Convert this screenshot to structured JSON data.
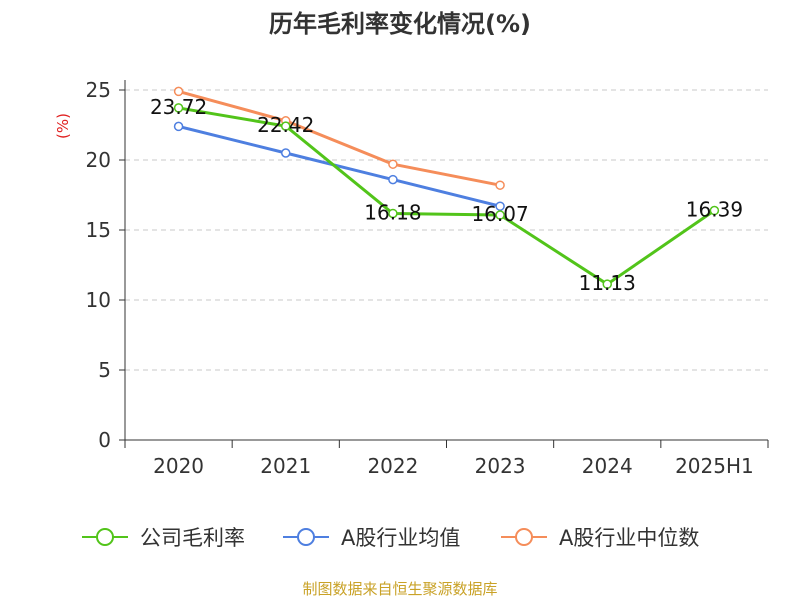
{
  "chart_data": {
    "type": "line",
    "title": "历年毛利率变化情况(%)",
    "ylabel": "(%)",
    "xlabel": "",
    "categories": [
      "2020",
      "2021",
      "2022",
      "2023",
      "2024",
      "2025H1"
    ],
    "ylim": [
      0,
      25
    ],
    "yticks": [
      0,
      5,
      10,
      15,
      20,
      25
    ],
    "grid": true,
    "legend_position": "bottom",
    "series": [
      {
        "name": "公司毛利率",
        "color": "#52c41a",
        "values": [
          23.72,
          22.42,
          16.18,
          16.07,
          11.13,
          16.39
        ],
        "labels": [
          "23.72",
          "22.42",
          "16.18",
          "16.07",
          "11.13",
          "16.39"
        ]
      },
      {
        "name": "A股行业均值",
        "color": "#4e7fe0",
        "values": [
          22.4,
          20.5,
          18.6,
          16.7,
          null,
          null
        ]
      },
      {
        "name": "A股行业中位数",
        "color": "#f58d5a",
        "values": [
          24.9,
          22.8,
          19.7,
          18.2,
          null,
          null
        ]
      }
    ]
  },
  "source": "制图数据来自恒生聚源数据库"
}
